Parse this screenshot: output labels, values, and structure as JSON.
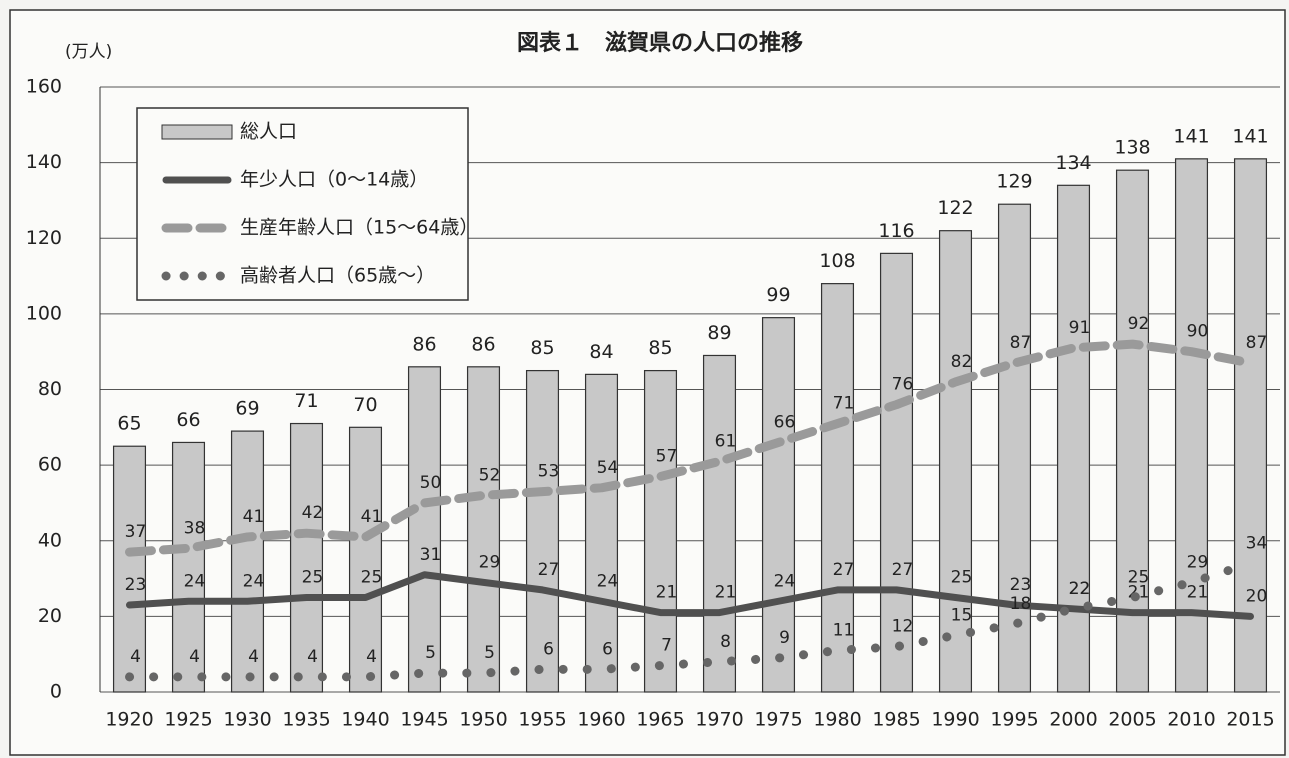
{
  "chart_data": {
    "type": "bar",
    "title": "図表１　滋賀県の人口の推移",
    "y_label": "(万人)",
    "categories": [
      "1920",
      "1925",
      "1930",
      "1935",
      "1940",
      "1945",
      "1950",
      "1955",
      "1960",
      "1965",
      "1970",
      "1975",
      "1980",
      "1985",
      "1990",
      "1995",
      "2000",
      "2005",
      "2010",
      "2015"
    ],
    "series": [
      {
        "name": "総人口",
        "type": "bar",
        "color": "#c8c8c8",
        "values": [
          65,
          66,
          69,
          71,
          70,
          86,
          86,
          85,
          84,
          85,
          89,
          99,
          108,
          116,
          122,
          129,
          134,
          138,
          141,
          141
        ]
      },
      {
        "name": "年少人口（0～14歳）",
        "type": "line",
        "style": "solid",
        "color": "#505050",
        "values": [
          23,
          24,
          24,
          25,
          25,
          31,
          29,
          27,
          24,
          21,
          21,
          24,
          27,
          27,
          25,
          23,
          22,
          21,
          21,
          20
        ]
      },
      {
        "name": "生産年齢人口（15～64歳）",
        "type": "line",
        "style": "dashed",
        "color": "#9a9a9a",
        "values": [
          37,
          38,
          41,
          42,
          41,
          50,
          52,
          53,
          54,
          57,
          61,
          66,
          71,
          76,
          82,
          87,
          91,
          92,
          90,
          87
        ]
      },
      {
        "name": "高齢者人口（65歳～）",
        "type": "line",
        "style": "dotted",
        "color": "#666666",
        "values": [
          4,
          4,
          4,
          4,
          4,
          5,
          5,
          6,
          6,
          7,
          8,
          9,
          11,
          12,
          15,
          18,
          22,
          25,
          29,
          34
        ]
      }
    ],
    "ylim": [
      0,
      160
    ],
    "yticks": [
      0,
      20,
      40,
      60,
      80,
      100,
      120,
      140,
      160
    ],
    "grid": true,
    "legend": "upper left"
  }
}
